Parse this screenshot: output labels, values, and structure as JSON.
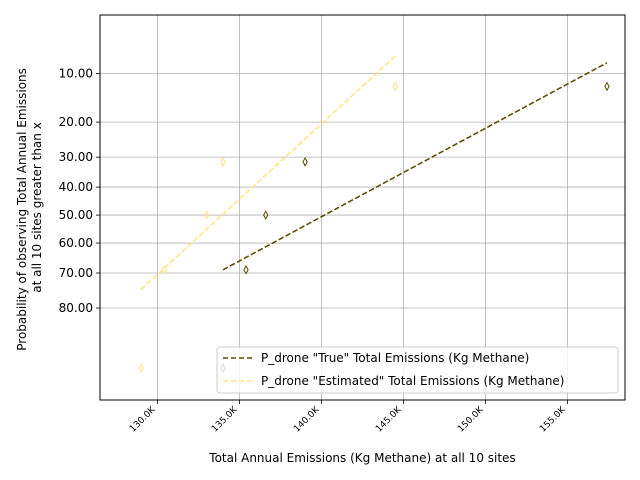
{
  "chart_data": {
    "type": "scatter",
    "xlabel": "Total Annual Emissions (Kg Methane) at all 10 sites",
    "ylabel_lines": [
      "Probability of observing Total Annual Emissions",
      "at all 10 sites greater than x"
    ],
    "xlim": [
      126500,
      158500
    ],
    "x_ticks": [
      130000,
      135000,
      140000,
      145000,
      150000,
      155000
    ],
    "x_tick_labels": [
      "130.0K",
      "135.0K",
      "140.0K",
      "145.0K",
      "150.0K",
      "155.0K"
    ],
    "y_scale": "probit (normal-probability), inverted",
    "ylim": [
      95.3,
      3.5
    ],
    "y_ticks": [
      10,
      20,
      30,
      40,
      50,
      60,
      70,
      80
    ],
    "y_tick_labels": [
      "10.00",
      "20.00",
      "30.00",
      "40.00",
      "50.00",
      "60.00",
      "70.00",
      "80.00"
    ],
    "grid": true,
    "legend_location": "lower right",
    "series": [
      {
        "name": "P_drone \"True\" Total Emissions (Kg Methane)",
        "color": "#5c4a00",
        "marker": "thin-diamond",
        "points": [
          {
            "x": 134000,
            "y": 91.7
          },
          {
            "x": 135400,
            "y": 69.0
          },
          {
            "x": 136600,
            "y": 50.0
          },
          {
            "x": 139000,
            "y": 31.5
          },
          {
            "x": 157400,
            "y": 12.2
          }
        ],
        "fit_line": {
          "x": [
            134000,
            157400
          ],
          "y": [
            69.0,
            8.4
          ]
        }
      },
      {
        "name": "P_drone \"Estimated\" Total Emissions (Kg Methane)",
        "color": "#ffe680",
        "marker": "thin-diamond",
        "points": [
          {
            "x": 129000,
            "y": 91.7
          },
          {
            "x": 130400,
            "y": 69.0
          },
          {
            "x": 133000,
            "y": 50.0
          },
          {
            "x": 134000,
            "y": 31.5
          },
          {
            "x": 144500,
            "y": 12.2
          }
        ],
        "fit_line": {
          "x": [
            129000,
            144500
          ],
          "y": [
            75.0,
            7.5
          ]
        }
      }
    ]
  }
}
